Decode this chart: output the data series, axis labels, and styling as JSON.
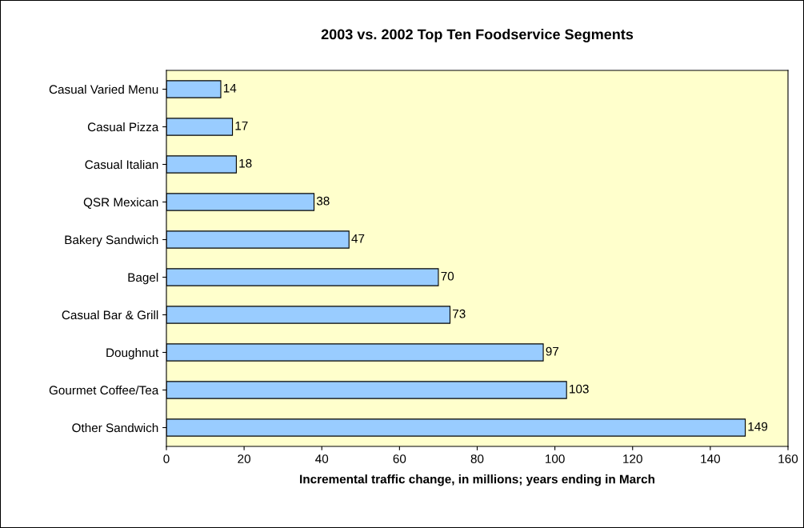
{
  "chart_data": {
    "type": "bar",
    "orientation": "horizontal",
    "title": "2003 vs. 2002 Top Ten Foodservice Segments",
    "xlabel": "Incremental traffic change, in millions; years ending in March",
    "categories": [
      "Casual Varied Menu",
      "Casual Pizza",
      "Casual Italian",
      "QSR Mexican",
      "Bakery Sandwich",
      "Bagel",
      "Casual Bar & Grill",
      "Doughnut",
      "Gourmet Coffee/Tea",
      "Other Sandwich"
    ],
    "values": [
      14,
      17,
      18,
      38,
      47,
      70,
      73,
      97,
      103,
      149
    ],
    "color": "#99ccff",
    "xlim": [
      0,
      160
    ],
    "xticks": [
      0,
      20,
      40,
      60,
      80,
      100,
      120,
      140,
      160
    ],
    "grid": false,
    "data_labels": true
  }
}
